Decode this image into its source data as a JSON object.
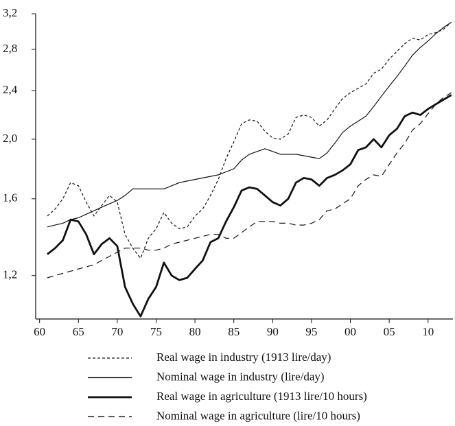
{
  "chart_data": {
    "type": "line",
    "ylog": true,
    "x": [
      1861,
      1862,
      1863,
      1864,
      1865,
      1866,
      1867,
      1868,
      1869,
      1870,
      1871,
      1872,
      1873,
      1874,
      1875,
      1876,
      1877,
      1878,
      1879,
      1880,
      1881,
      1882,
      1883,
      1884,
      1885,
      1886,
      1887,
      1888,
      1889,
      1890,
      1891,
      1892,
      1893,
      1894,
      1895,
      1896,
      1897,
      1898,
      1899,
      1900,
      1901,
      1902,
      1903,
      1904,
      1905,
      1906,
      1907,
      1908,
      1909,
      1910,
      1911,
      1912,
      1913
    ],
    "xlim": [
      1859.5,
      1913.2
    ],
    "xticks": [
      {
        "value": 1860,
        "label": "60"
      },
      {
        "value": 1865,
        "label": "65"
      },
      {
        "value": 1870,
        "label": "70"
      },
      {
        "value": 1875,
        "label": "75"
      },
      {
        "value": 1880,
        "label": "80"
      },
      {
        "value": 1885,
        "label": "85"
      },
      {
        "value": 1890,
        "label": "90"
      },
      {
        "value": 1895,
        "label": "95"
      },
      {
        "value": 1900,
        "label": "00"
      },
      {
        "value": 1905,
        "label": "05"
      },
      {
        "value": 1910,
        "label": "10"
      }
    ],
    "ylim": [
      1.02,
      3.2
    ],
    "yticks": [
      {
        "value": 1.2,
        "label": "1,2"
      },
      {
        "value": 1.6,
        "label": "1,6"
      },
      {
        "value": 2.0,
        "label": "2,0"
      },
      {
        "value": 2.4,
        "label": "2,4"
      },
      {
        "value": 2.8,
        "label": "2,8"
      },
      {
        "value": 3.2,
        "label": "3,2"
      }
    ],
    "series": [
      {
        "name": "Real wage in industry (1913 lire/day)",
        "color": "#111111",
        "style": "dotted",
        "width": 1.2,
        "values": [
          1.5,
          1.54,
          1.6,
          1.7,
          1.68,
          1.58,
          1.5,
          1.56,
          1.62,
          1.58,
          1.4,
          1.33,
          1.28,
          1.38,
          1.43,
          1.52,
          1.46,
          1.43,
          1.44,
          1.5,
          1.54,
          1.62,
          1.72,
          1.86,
          1.98,
          2.12,
          2.15,
          2.14,
          2.06,
          2.01,
          2.0,
          2.04,
          2.17,
          2.19,
          2.17,
          2.1,
          2.15,
          2.24,
          2.33,
          2.38,
          2.42,
          2.46,
          2.56,
          2.6,
          2.7,
          2.78,
          2.86,
          2.92,
          2.9,
          2.96,
          2.98,
          3.02,
          3.1
        ]
      },
      {
        "name": "Nominal wage in industry (lire/day)",
        "color": "#111111",
        "style": "solid",
        "width": 1.2,
        "values": [
          1.44,
          1.45,
          1.46,
          1.48,
          1.49,
          1.51,
          1.53,
          1.55,
          1.57,
          1.59,
          1.62,
          1.66,
          1.66,
          1.66,
          1.66,
          1.66,
          1.68,
          1.7,
          1.71,
          1.72,
          1.73,
          1.74,
          1.75,
          1.77,
          1.79,
          1.85,
          1.89,
          1.91,
          1.93,
          1.91,
          1.89,
          1.89,
          1.89,
          1.88,
          1.87,
          1.86,
          1.9,
          1.97,
          2.05,
          2.1,
          2.14,
          2.18,
          2.26,
          2.35,
          2.44,
          2.53,
          2.63,
          2.74,
          2.82,
          2.89,
          2.97,
          3.04,
          3.1
        ]
      },
      {
        "name": "Real wage in agriculture (1913 lire/10 hours)",
        "color": "#111111",
        "style": "solid",
        "width": 2.8,
        "values": [
          1.3,
          1.33,
          1.37,
          1.48,
          1.47,
          1.4,
          1.3,
          1.35,
          1.38,
          1.34,
          1.15,
          1.08,
          1.03,
          1.1,
          1.15,
          1.26,
          1.2,
          1.18,
          1.19,
          1.23,
          1.27,
          1.36,
          1.38,
          1.47,
          1.55,
          1.65,
          1.67,
          1.66,
          1.62,
          1.58,
          1.56,
          1.6,
          1.7,
          1.73,
          1.72,
          1.68,
          1.73,
          1.75,
          1.78,
          1.82,
          1.92,
          1.94,
          2.0,
          1.94,
          2.03,
          2.08,
          2.18,
          2.21,
          2.19,
          2.24,
          2.28,
          2.32,
          2.36
        ]
      },
      {
        "name": "Nominal wage in agriculture (lire/10 hours)",
        "color": "#111111",
        "style": "dashed",
        "width": 1.2,
        "values": [
          1.19,
          1.2,
          1.21,
          1.22,
          1.23,
          1.24,
          1.25,
          1.27,
          1.29,
          1.31,
          1.33,
          1.33,
          1.33,
          1.32,
          1.32,
          1.33,
          1.35,
          1.36,
          1.37,
          1.38,
          1.39,
          1.4,
          1.4,
          1.38,
          1.38,
          1.41,
          1.44,
          1.47,
          1.47,
          1.47,
          1.46,
          1.46,
          1.45,
          1.45,
          1.46,
          1.48,
          1.53,
          1.54,
          1.57,
          1.6,
          1.68,
          1.72,
          1.75,
          1.74,
          1.82,
          1.9,
          1.97,
          2.07,
          2.12,
          2.2,
          2.28,
          2.34,
          2.38
        ]
      }
    ]
  }
}
